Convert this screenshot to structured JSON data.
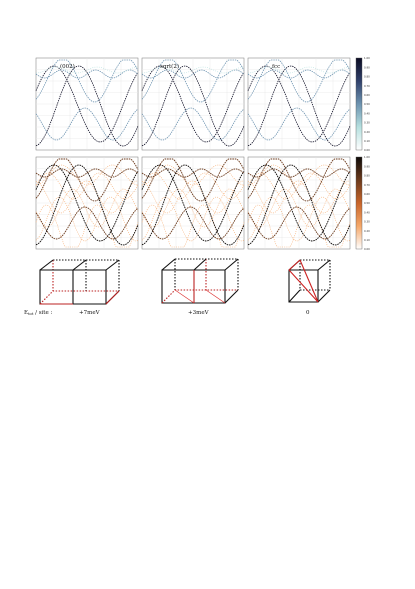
{
  "panels": {
    "titles": [
      "(002)",
      "sqrt(2)",
      "fcc"
    ],
    "colorbar_top": {
      "ticks": [
        "1.00",
        "0.90",
        "0.80",
        "0.70",
        "0.60",
        "0.50",
        "0.40",
        "0.30",
        "0.20",
        "0.10",
        "0.00"
      ],
      "colors": [
        "#0b0b22",
        "#30406a",
        "#6d93b0",
        "#b6e0df",
        "#ffffff"
      ]
    },
    "colorbar_bottom": {
      "ticks": [
        "1.00",
        "0.90",
        "0.80",
        "0.70",
        "0.60",
        "0.50",
        "0.40",
        "0.30",
        "0.20",
        "0.10",
        "0.00"
      ],
      "colors": [
        "#0e0a08",
        "#6b3a1c",
        "#c8652a",
        "#f5a86a",
        "#ffffff"
      ]
    }
  },
  "energy_row": {
    "label": "E",
    "label_sub": "tot",
    "label_rest": " / site :",
    "values": [
      "+7meV",
      "+3meV",
      "0"
    ]
  }
}
